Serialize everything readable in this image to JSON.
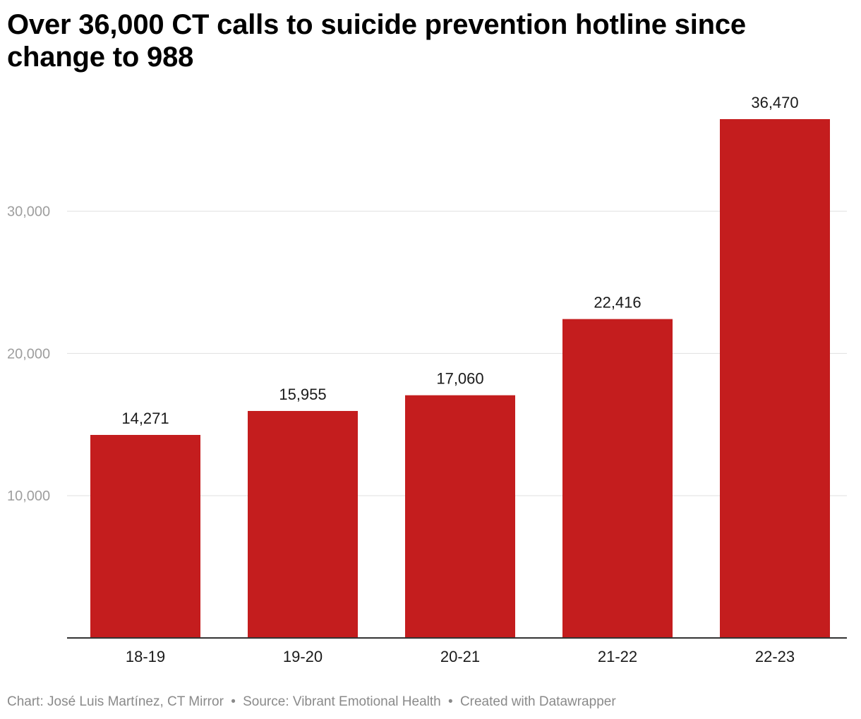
{
  "chart_data": {
    "type": "bar",
    "title": "Over 36,000 CT calls to suicide prevention hotline since change to 988",
    "categories": [
      "18-19",
      "19-20",
      "20-21",
      "21-22",
      "22-23"
    ],
    "values": [
      14271,
      15955,
      17060,
      22416,
      36470
    ],
    "value_labels": [
      "14,271",
      "15,955",
      "17,060",
      "22,416",
      "36,470"
    ],
    "yticks": [
      10000,
      20000,
      30000
    ],
    "ytick_labels": [
      "10,000",
      "20,000",
      "30,000"
    ],
    "ylim": [
      0,
      36470
    ],
    "grid": true,
    "bar_color": "#c41d1e",
    "xlabel": "",
    "ylabel": ""
  },
  "footer": {
    "chart_credit": "Chart: José Luis Martínez, CT Mirror",
    "separator": "•",
    "source": "Source: Vibrant Emotional Health",
    "created_with": "Created with Datawrapper"
  }
}
